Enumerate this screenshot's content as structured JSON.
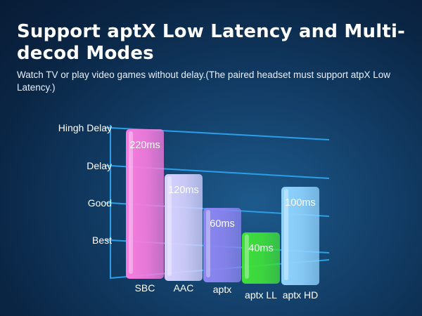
{
  "header": {
    "title": "Support aptX Low Latency and Multi-decod Modes",
    "subtitle": "Watch TV or play video games without delay.(The paired headset must support atpX Low Latency.)"
  },
  "colors": {
    "grid": "#2a9fe8",
    "SBC": "#f77de0",
    "AAC": "#d7d2ff",
    "aptx": "#8c86f2",
    "aptx LL": "#3fe03a",
    "aptx HD": "#8fd3ff"
  },
  "chart_data": {
    "type": "bar",
    "categories": [
      "SBC",
      "AAC",
      "aptx",
      "aptx LL",
      "aptx HD"
    ],
    "values": [
      220,
      120,
      60,
      40,
      100
    ],
    "data_labels": [
      "220ms",
      "120ms",
      "60ms",
      "40ms",
      "100ms"
    ],
    "y_tick_labels": [
      "Best",
      "Good",
      "Delay",
      "Hingh Delay"
    ],
    "grid": true,
    "title": "",
    "xlabel": "",
    "ylabel": ""
  }
}
